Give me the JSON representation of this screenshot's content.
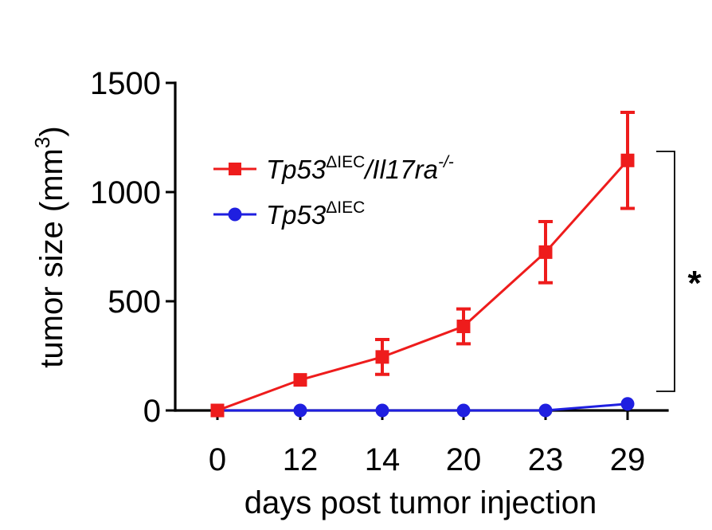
{
  "chart_data": {
    "type": "line",
    "xlabel": "days post tumor injection",
    "ylabel": "tumor size (mm",
    "ylabel_sup": "3",
    "ylabel_close": ")",
    "categories": [
      "0",
      "12",
      "14",
      "20",
      "23",
      "29"
    ],
    "ylim": [
      0,
      1500
    ],
    "yticks": [
      0,
      500,
      1000,
      1500
    ],
    "ytick_labels": [
      "0",
      "500",
      "1000",
      "1500"
    ],
    "grid": false,
    "legend_position": "top-left",
    "series": [
      {
        "name_base": "Tp53",
        "name_sup": "ΔIEC",
        "name_mid": "/Il17ra",
        "name_sup2": "-/-",
        "color": "#ee1c1c",
        "marker": "square",
        "values": [
          0,
          140,
          245,
          385,
          725,
          1145
        ],
        "error": [
          0,
          0,
          80,
          80,
          140,
          220
        ]
      },
      {
        "name_base": "Tp53",
        "name_sup": "ΔIEC",
        "color": "#1f1fe0",
        "marker": "circle",
        "values": [
          0,
          0,
          0,
          0,
          0,
          30
        ],
        "error": [
          0,
          0,
          0,
          0,
          0,
          0
        ]
      }
    ],
    "annotation": "*"
  }
}
